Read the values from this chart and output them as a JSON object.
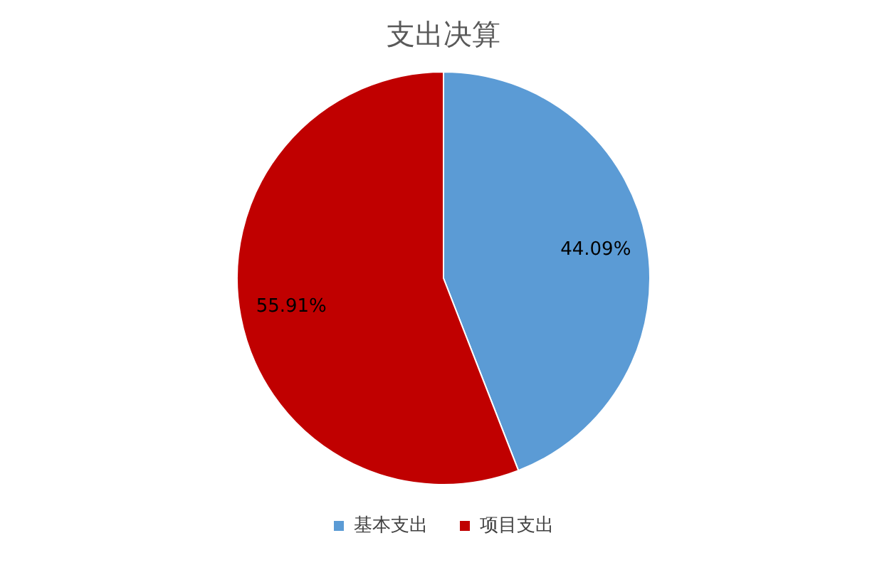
{
  "chart_data": {
    "type": "pie",
    "title": "支出决算",
    "categories": [
      "基本支出",
      "项目支出"
    ],
    "values": [
      44.09,
      55.91
    ],
    "colors": [
      "#5b9bd5",
      "#c00000"
    ],
    "value_labels": [
      "44.09%",
      "55.91%"
    ],
    "legend": "bottom"
  }
}
